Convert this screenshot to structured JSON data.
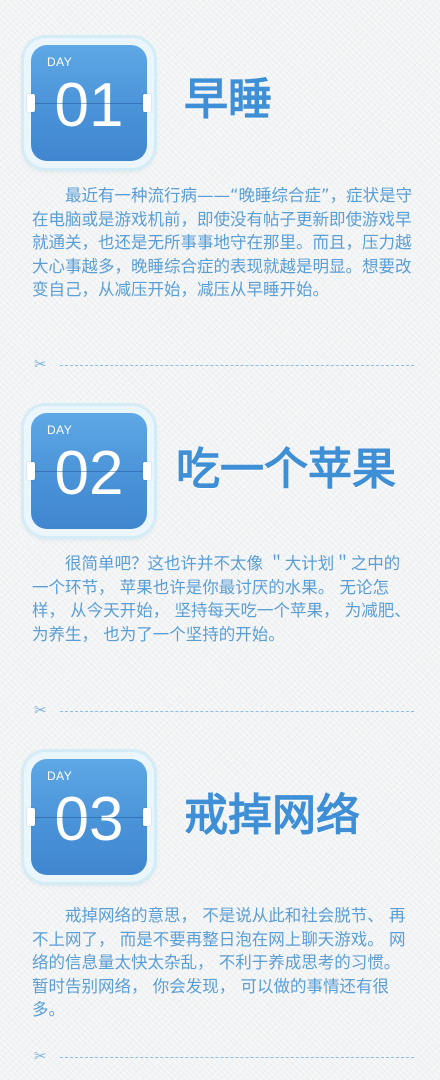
{
  "sections": [
    {
      "day_label": "DAY",
      "day_number": "01",
      "title": "早睡",
      "body": "最近有一种流行病——“晚睡综合症”，症状是守在电脑或是游戏机前，即使没有帖子更新即使游戏早就通关，也还是无所事事地守在那里。而且，压力越大心事越多，晚睡综合症的表现就越是明显。想要改变自己，从减压开始，减压从早睡开始。"
    },
    {
      "day_label": "DAY",
      "day_number": "02",
      "title": "吃一个苹果",
      "body": "很简单吧？这也许并不太像 ＂大计划＂之中的一个环节， 苹果也许是你最讨厌的水果。 无论怎样， 从今天开始， 坚持每天吃一个苹果， 为减肥、 为养生， 也为了一个坚持的开始。"
    },
    {
      "day_label": "DAY",
      "day_number": "03",
      "title": "戒掉网络",
      "body": "戒掉网络的意思， 不是说从此和社会脱节、 再不上网了， 而是不要再整日泡在网上聊天游戏。 网络的信息量太快太杂乱， 不利于养成思考的习惯。 暂时告别网络， 你会发现， 可以做的事情还有很多。"
    }
  ],
  "icons": {
    "scissors": "✂"
  },
  "colors": {
    "accent": "#3f8fd6",
    "card": "#4a93d8",
    "text": "#5a9ed6"
  }
}
